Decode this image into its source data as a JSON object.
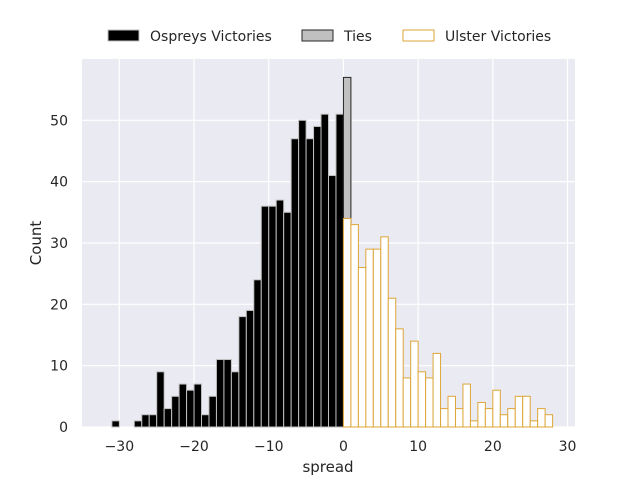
{
  "chart_data": {
    "type": "bar",
    "subtype": "histogram",
    "xlabel": "spread",
    "ylabel": "Count",
    "xlim": [
      -35,
      31
    ],
    "ylim": [
      0,
      60
    ],
    "xticks": [
      -30,
      -20,
      -10,
      0,
      10,
      20,
      30
    ],
    "yticks": [
      0,
      10,
      20,
      30,
      40,
      50
    ],
    "grid": true,
    "legend_position": "top-center",
    "colors": {
      "background": "#eaeaf2",
      "grid": "#ffffff",
      "ospreys": "#000000",
      "ospreys_edge": "#bfbfbf",
      "ties": "#c0c0c0",
      "ties_edge": "#262626",
      "ulster_edge": "#dda63a"
    },
    "series": [
      {
        "name": "Ospreys Victories",
        "style": "filled",
        "x": [
          -32,
          -31,
          -30,
          -29,
          -28,
          -27,
          -26,
          -25,
          -24,
          -23,
          -22,
          -21,
          -20,
          -19,
          -18,
          -17,
          -16,
          -15,
          -14,
          -13,
          -12,
          -11,
          -10,
          -9,
          -8,
          -7,
          -6,
          -5,
          -4,
          -3,
          -2,
          -1
        ],
        "values": [
          0,
          1,
          0,
          0,
          1,
          2,
          2,
          9,
          3,
          5,
          7,
          6,
          7,
          2,
          5,
          11,
          11,
          9,
          18,
          19,
          24,
          36,
          36,
          37,
          35,
          47,
          50,
          47,
          49,
          51,
          41,
          51
        ]
      },
      {
        "name": "Ties",
        "style": "filled",
        "x": [
          0
        ],
        "values": [
          57
        ]
      },
      {
        "name": "Ulster Victories",
        "style": "outline",
        "x": [
          0,
          1,
          2,
          3,
          4,
          5,
          6,
          7,
          8,
          9,
          10,
          11,
          12,
          13,
          14,
          15,
          16,
          17,
          18,
          19,
          20,
          21,
          22,
          23,
          24,
          25,
          26,
          27,
          28
        ],
        "values": [
          34,
          33,
          26,
          29,
          29,
          31,
          21,
          16,
          8,
          14,
          9,
          8,
          12,
          3,
          5,
          3,
          7,
          1,
          4,
          3,
          6,
          2,
          3,
          5,
          5,
          1,
          3,
          2,
          0
        ]
      }
    ]
  }
}
